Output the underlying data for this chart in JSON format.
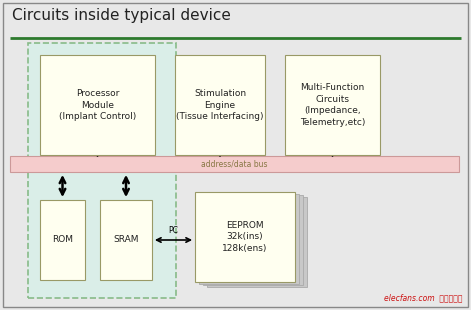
{
  "title": "Circuits inside typical device",
  "bg_color": "#e8e8e8",
  "fig_bg": "#e8e8e8",
  "outer_border_color": "#888888",
  "box_fill_yellow": "#fffff0",
  "box_fill_light_cyan": "#daeee8",
  "bus_fill": "#f5cccc",
  "bus_text": "address/data bus",
  "green_line_color": "#2d7a2d",
  "dashed_box_color": "#88bb88",
  "title_fontsize": 11,
  "label_fontsize": 6.5,
  "bus_fontsize": 5.5,
  "watermark": "elecfans.com  电子发烧友",
  "watermark_color": "#cc1111",
  "pc_label": "PC",
  "processor_text": "Processor\nModule\n(Implant Control)",
  "stimulation_text": "Stimulation\nEngine\n(Tissue Interfacing)",
  "multifunction_text": "Multi-Function\nCircuits\n(Impedance,\nTelemetry,etc)",
  "rom_text": "ROM",
  "sram_text": "SRAM",
  "eeprom_text": "EEPROM\n32k(ins)\n128k(ens)"
}
